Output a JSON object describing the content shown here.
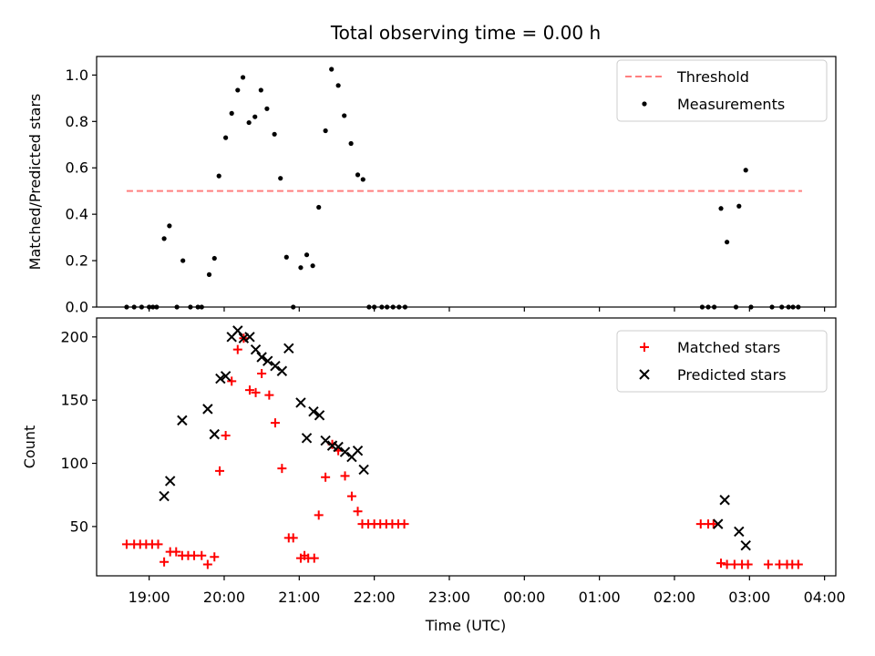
{
  "figure": {
    "title": "Total observing time = 0.00 h",
    "xlabel": "Time (UTC)"
  },
  "chart_data": [
    {
      "type": "scatter",
      "ylabel": "Matched/Predicted stars",
      "xlim": [
        18.3,
        28.15
      ],
      "ylim": [
        0,
        1.08
      ],
      "yticks": [
        0.0,
        0.2,
        0.4,
        0.6,
        0.8,
        1.0
      ],
      "ytick_labels": [
        "0.0",
        "0.2",
        "0.4",
        "0.6",
        "0.8",
        "1.0"
      ],
      "threshold": {
        "name": "Threshold",
        "value": 0.5,
        "x_range": [
          18.7,
          27.7
        ],
        "color": "#ff7f7f"
      },
      "legend": {
        "position": "upper right",
        "entries": [
          "Threshold",
          "Measurements"
        ]
      },
      "series": [
        {
          "name": "Measurements",
          "color": "#000000",
          "marker": "dot",
          "points": [
            [
              18.7,
              0
            ],
            [
              18.8,
              0
            ],
            [
              18.9,
              0
            ],
            [
              19.0,
              0
            ],
            [
              19.05,
              0
            ],
            [
              19.1,
              0
            ],
            [
              19.2,
              0.295
            ],
            [
              19.27,
              0.35
            ],
            [
              19.37,
              0
            ],
            [
              19.45,
              0.2
            ],
            [
              19.55,
              0
            ],
            [
              19.65,
              0
            ],
            [
              19.7,
              0
            ],
            [
              19.8,
              0.14
            ],
            [
              19.87,
              0.21
            ],
            [
              19.93,
              0.565
            ],
            [
              20.02,
              0.73
            ],
            [
              20.1,
              0.835
            ],
            [
              20.18,
              0.935
            ],
            [
              20.25,
              0.99
            ],
            [
              20.33,
              0.795
            ],
            [
              20.41,
              0.82
            ],
            [
              20.49,
              0.935
            ],
            [
              20.57,
              0.855
            ],
            [
              20.67,
              0.745
            ],
            [
              20.75,
              0.555
            ],
            [
              20.83,
              0.215
            ],
            [
              20.92,
              0
            ],
            [
              21.02,
              0.17
            ],
            [
              21.1,
              0.225
            ],
            [
              21.18,
              0.178
            ],
            [
              21.26,
              0.43
            ],
            [
              21.35,
              0.76
            ],
            [
              21.43,
              1.025
            ],
            [
              21.52,
              0.955
            ],
            [
              21.6,
              0.825
            ],
            [
              21.69,
              0.705
            ],
            [
              21.78,
              0.57
            ],
            [
              21.85,
              0.55
            ],
            [
              21.93,
              0
            ],
            [
              22.0,
              0
            ],
            [
              22.1,
              0
            ],
            [
              22.17,
              0
            ],
            [
              22.25,
              0
            ],
            [
              22.33,
              0
            ],
            [
              22.41,
              0
            ],
            [
              26.37,
              0
            ],
            [
              26.45,
              0
            ],
            [
              26.53,
              0
            ],
            [
              26.62,
              0.425
            ],
            [
              26.7,
              0.28
            ],
            [
              26.82,
              0
            ],
            [
              26.86,
              0.435
            ],
            [
              26.95,
              0.59
            ],
            [
              27.02,
              0
            ],
            [
              27.3,
              0
            ],
            [
              27.43,
              0
            ],
            [
              27.52,
              0
            ],
            [
              27.58,
              0
            ],
            [
              27.65,
              0
            ]
          ]
        }
      ]
    },
    {
      "type": "scatter",
      "ylabel": "Count",
      "xlim": [
        18.3,
        28.15
      ],
      "ylim": [
        11,
        215
      ],
      "yticks": [
        50,
        100,
        150,
        200
      ],
      "ytick_labels": [
        "50",
        "100",
        "150",
        "200"
      ],
      "xticks": [
        19,
        20,
        21,
        22,
        23,
        24,
        25,
        26,
        27,
        28
      ],
      "xtick_labels": [
        "19:00",
        "20:00",
        "21:00",
        "22:00",
        "23:00",
        "00:00",
        "01:00",
        "02:00",
        "03:00",
        "04:00"
      ],
      "legend": {
        "position": "upper right",
        "entries": [
          "Matched stars",
          "Predicted stars"
        ]
      },
      "series": [
        {
          "name": "Matched stars",
          "color": "#ff0000",
          "marker": "plus",
          "points": [
            [
              18.7,
              36
            ],
            [
              18.8,
              36
            ],
            [
              18.88,
              36
            ],
            [
              18.96,
              36
            ],
            [
              19.04,
              36
            ],
            [
              19.12,
              36
            ],
            [
              19.2,
              22
            ],
            [
              19.28,
              30
            ],
            [
              19.36,
              30
            ],
            [
              19.44,
              27
            ],
            [
              19.52,
              27
            ],
            [
              19.6,
              27
            ],
            [
              19.7,
              27
            ],
            [
              19.78,
              20
            ],
            [
              19.87,
              26
            ],
            [
              19.94,
              94
            ],
            [
              20.02,
              122
            ],
            [
              20.1,
              165
            ],
            [
              20.18,
              190
            ],
            [
              20.26,
              199
            ],
            [
              20.34,
              158
            ],
            [
              20.42,
              156
            ],
            [
              20.5,
              171
            ],
            [
              20.6,
              154
            ],
            [
              20.68,
              132
            ],
            [
              20.77,
              96
            ],
            [
              20.86,
              41
            ],
            [
              20.92,
              41
            ],
            [
              21.02,
              25
            ],
            [
              21.07,
              27
            ],
            [
              21.12,
              25
            ],
            [
              21.2,
              25
            ],
            [
              21.26,
              59
            ],
            [
              21.35,
              89
            ],
            [
              21.44,
              115
            ],
            [
              21.52,
              110
            ],
            [
              21.61,
              90
            ],
            [
              21.7,
              74
            ],
            [
              21.78,
              62
            ],
            [
              21.84,
              52
            ],
            [
              21.92,
              52
            ],
            [
              22.0,
              52
            ],
            [
              22.08,
              52
            ],
            [
              22.16,
              52
            ],
            [
              22.24,
              52
            ],
            [
              22.32,
              52
            ],
            [
              22.4,
              52
            ],
            [
              26.35,
              52
            ],
            [
              26.45,
              52
            ],
            [
              26.52,
              52
            ],
            [
              26.62,
              21
            ],
            [
              26.7,
              20
            ],
            [
              26.8,
              20
            ],
            [
              26.9,
              20
            ],
            [
              26.98,
              20
            ],
            [
              27.25,
              20
            ],
            [
              27.4,
              20
            ],
            [
              27.5,
              20
            ],
            [
              27.57,
              20
            ],
            [
              27.65,
              20
            ]
          ]
        },
        {
          "name": "Predicted stars",
          "color": "#000000",
          "marker": "x",
          "points": [
            [
              19.2,
              74
            ],
            [
              19.28,
              86
            ],
            [
              19.44,
              134
            ],
            [
              19.78,
              143
            ],
            [
              19.87,
              123
            ],
            [
              19.95,
              167
            ],
            [
              20.02,
              169
            ],
            [
              20.1,
              200
            ],
            [
              20.18,
              205
            ],
            [
              20.26,
              199
            ],
            [
              20.34,
              200
            ],
            [
              20.42,
              190
            ],
            [
              20.5,
              184
            ],
            [
              20.58,
              181
            ],
            [
              20.68,
              177
            ],
            [
              20.77,
              173
            ],
            [
              20.86,
              191
            ],
            [
              21.02,
              148
            ],
            [
              21.1,
              120
            ],
            [
              21.19,
              141
            ],
            [
              21.27,
              138
            ],
            [
              21.35,
              118
            ],
            [
              21.44,
              114
            ],
            [
              21.52,
              113
            ],
            [
              21.61,
              109
            ],
            [
              21.7,
              105
            ],
            [
              21.78,
              110
            ],
            [
              21.86,
              95
            ],
            [
              26.58,
              52
            ],
            [
              26.67,
              71
            ],
            [
              26.86,
              46
            ],
            [
              26.95,
              35
            ]
          ]
        }
      ]
    }
  ]
}
